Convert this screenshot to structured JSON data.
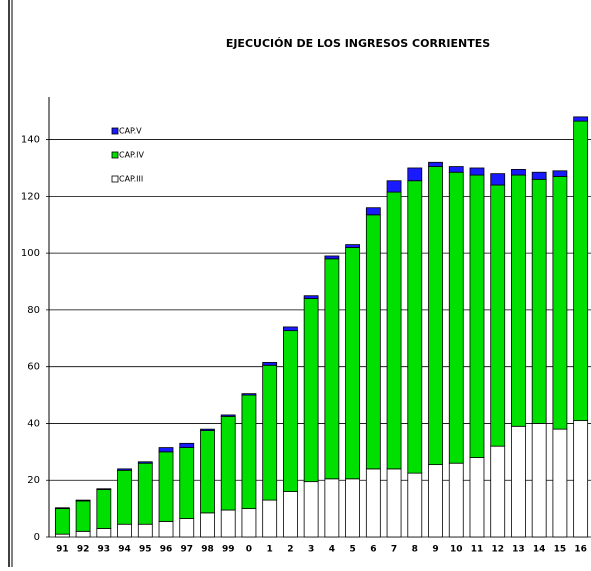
{
  "chart_data": {
    "type": "stacked_bar",
    "title": "EJECUCIÓN DE LOS INGRESOS CORRIENTES",
    "categories": [
      "91",
      "92",
      "93",
      "94",
      "95",
      "96",
      "97",
      "98",
      "99",
      "0",
      "1",
      "2",
      "3",
      "4",
      "5",
      "6",
      "7",
      "8",
      "9",
      "10",
      "11",
      "12",
      "13",
      "14",
      "15",
      "16"
    ],
    "series": [
      {
        "name": "CAP.III",
        "color": "#ffffff",
        "values": [
          1,
          2,
          3,
          4.5,
          4.5,
          5.5,
          6.5,
          8.5,
          9.5,
          10,
          13,
          16,
          19.5,
          20.5,
          20.5,
          24,
          24,
          22.5,
          25.5,
          26,
          28,
          32,
          39,
          40,
          38,
          41
        ]
      },
      {
        "name": "CAP.IV",
        "color": "#00e000",
        "values": [
          9,
          10.7,
          13.7,
          19,
          21.5,
          24.5,
          25,
          29,
          33,
          40,
          47.5,
          56.7,
          64.5,
          77.5,
          81.5,
          89.5,
          97.5,
          103,
          105,
          102.5,
          99.5,
          92,
          88.5,
          86,
          89,
          105.5
        ]
      },
      {
        "name": "CAP.V",
        "color": "#1a1aff",
        "values": [
          0.3,
          0.3,
          0.3,
          0.5,
          0.5,
          1.5,
          1.5,
          0.5,
          0.5,
          0.5,
          1,
          1.3,
          1,
          1,
          1,
          2.5,
          4,
          4.5,
          1.5,
          2,
          2.5,
          4,
          2,
          2.5,
          2,
          1.5
        ]
      }
    ],
    "ylim": [
      0,
      155
    ],
    "yticks": [
      0,
      20,
      40,
      60,
      80,
      100,
      120,
      140
    ],
    "grid": true
  }
}
